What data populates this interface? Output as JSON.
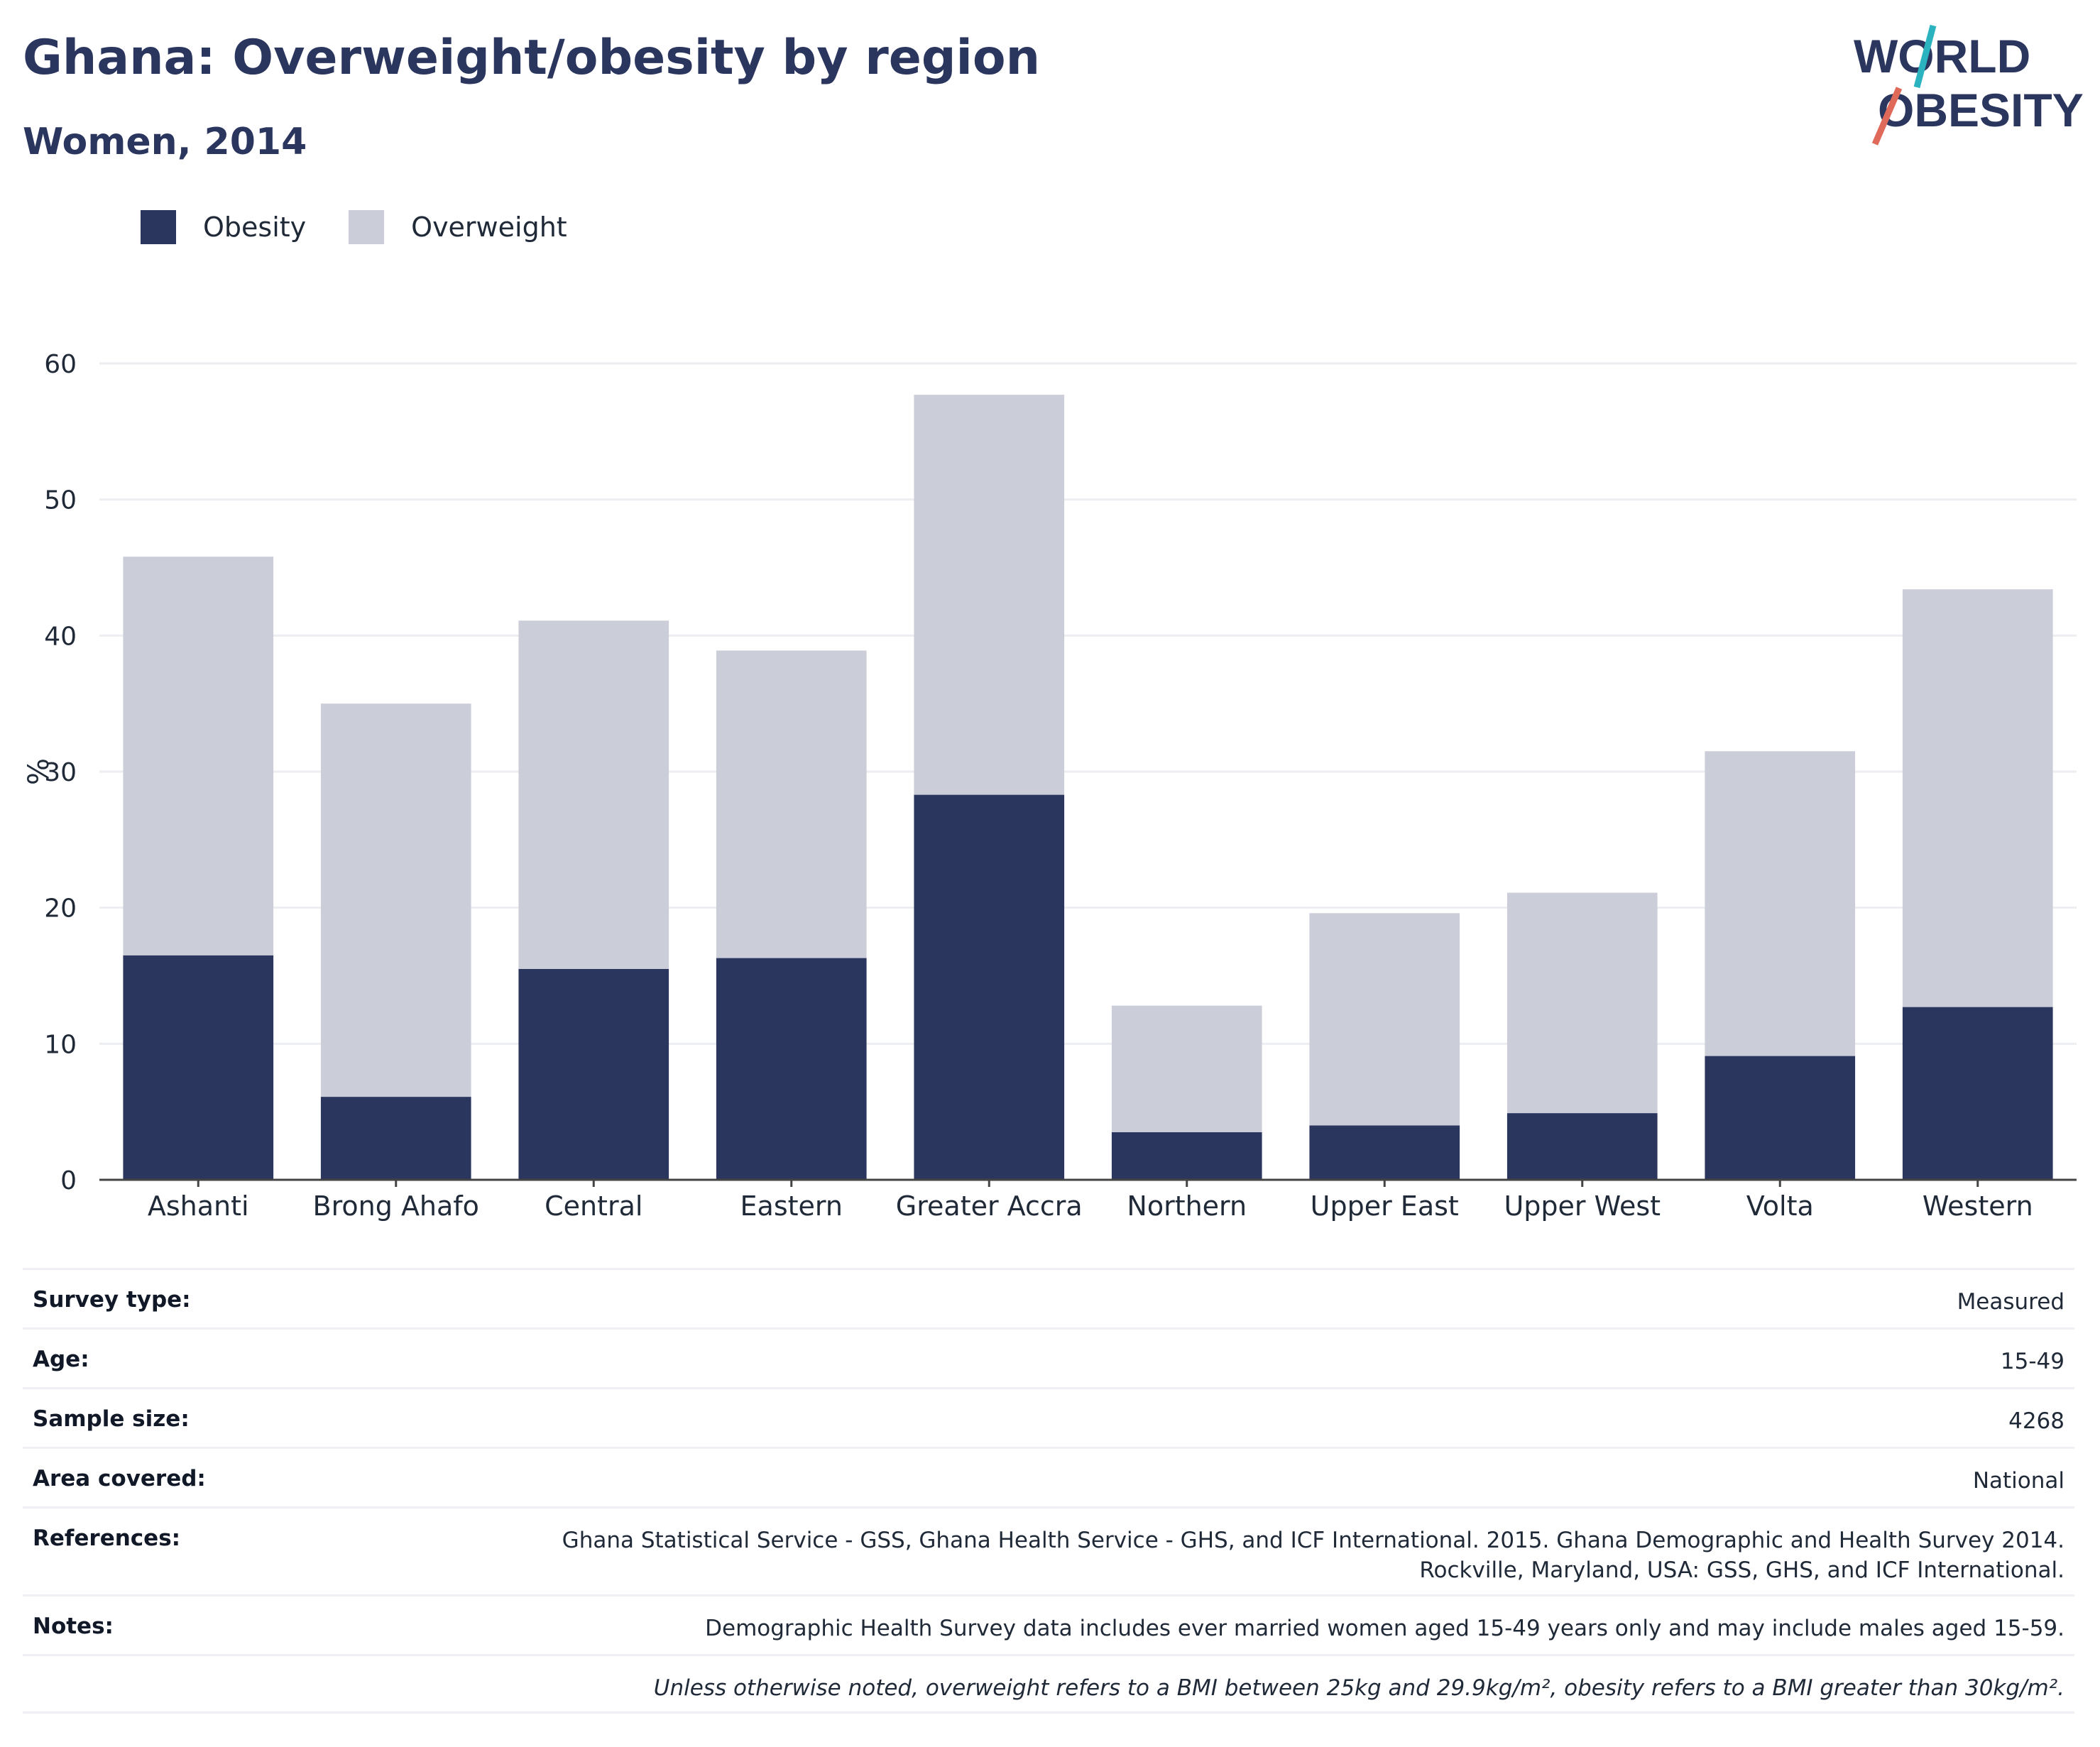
{
  "header": {
    "title": "Ghana: Overweight/obesity by region",
    "subtitle": "Women, 2014"
  },
  "logo": {
    "line1": "WORLD",
    "line2": "OBESITY"
  },
  "legend": [
    {
      "label": "Obesity",
      "color": "#2b365f"
    },
    {
      "label": "Overweight",
      "color": "#cbcdd8"
    }
  ],
  "chart_data": {
    "type": "bar",
    "stacked": true,
    "categories": [
      "Ashanti",
      "Brong Ahafo",
      "Central",
      "Eastern",
      "Greater Accra",
      "Northern",
      "Upper East",
      "Upper West",
      "Volta",
      "Western"
    ],
    "series": [
      {
        "name": "Obesity",
        "color": "#2b365f",
        "values": [
          16.5,
          6.1,
          15.5,
          16.3,
          28.3,
          3.5,
          4.0,
          4.9,
          9.1,
          12.7
        ]
      },
      {
        "name": "Overweight",
        "color": "#cbcdd8",
        "values": [
          29.3,
          28.9,
          25.6,
          22.6,
          29.4,
          9.3,
          15.6,
          16.2,
          22.4,
          30.7
        ]
      }
    ],
    "ylabel": "%",
    "xlabel": "",
    "ylim": [
      0,
      60
    ],
    "yticks": [
      0,
      10,
      20,
      30,
      40,
      50,
      60
    ],
    "grid": true
  },
  "meta": [
    {
      "key": "Survey type:",
      "value": "Measured"
    },
    {
      "key": "Age:",
      "value": "15-49"
    },
    {
      "key": "Sample size:",
      "value": "4268"
    },
    {
      "key": "Area covered:",
      "value": "National"
    },
    {
      "key": "References:",
      "value": "Ghana Statistical Service - GSS, Ghana Health Service - GHS, and ICF International. 2015. Ghana Demographic and Health Survey 2014.",
      "value2": "Rockville, Maryland, USA: GSS, GHS, and ICF International."
    },
    {
      "key": "Notes:",
      "value": "Demographic Health Survey data includes ever married women aged 15-49 years only and may include males aged 15-59."
    }
  ],
  "footnote": "Unless otherwise noted, overweight refers to a BMI between 25kg and 29.9kg/m², obesity refers to a BMI greater than 30kg/m²."
}
